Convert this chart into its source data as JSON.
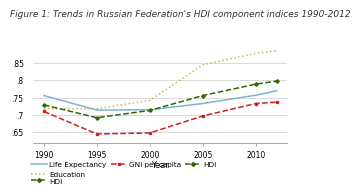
{
  "title": "Figure 1: Trends in Russian Federation's HDI component indices 1990-2012",
  "xlabel": "Year",
  "ylim": [
    0.62,
    0.92
  ],
  "xlim": [
    1989,
    2013
  ],
  "xticks": [
    1990,
    1995,
    2000,
    2005,
    2010
  ],
  "yticks": [
    0.65,
    0.7,
    0.75,
    0.8,
    0.85
  ],
  "ytick_labels": [
    ".65",
    ".7",
    ".75",
    ".8",
    ".85"
  ],
  "years": [
    1990,
    1995,
    2000,
    2005,
    2010,
    2012
  ],
  "life_expectancy": [
    0.756,
    0.714,
    0.715,
    0.733,
    0.757,
    0.77
  ],
  "education": [
    0.718,
    0.718,
    0.742,
    0.845,
    0.878,
    0.886
  ],
  "gni_per_capita": [
    0.71,
    0.645,
    0.648,
    0.697,
    0.733,
    0.737
  ],
  "hdi": [
    0.729,
    0.692,
    0.713,
    0.756,
    0.789,
    0.798
  ],
  "color_le": "#7ab4d4",
  "color_ed": "#c8b860",
  "color_gni": "#cc2222",
  "color_hdi": "#336600",
  "bg_color": "#ffffff",
  "title_fontsize": 6.5,
  "tick_fontsize": 5.5,
  "axis_label_fontsize": 6,
  "legend_fontsize": 5.2
}
